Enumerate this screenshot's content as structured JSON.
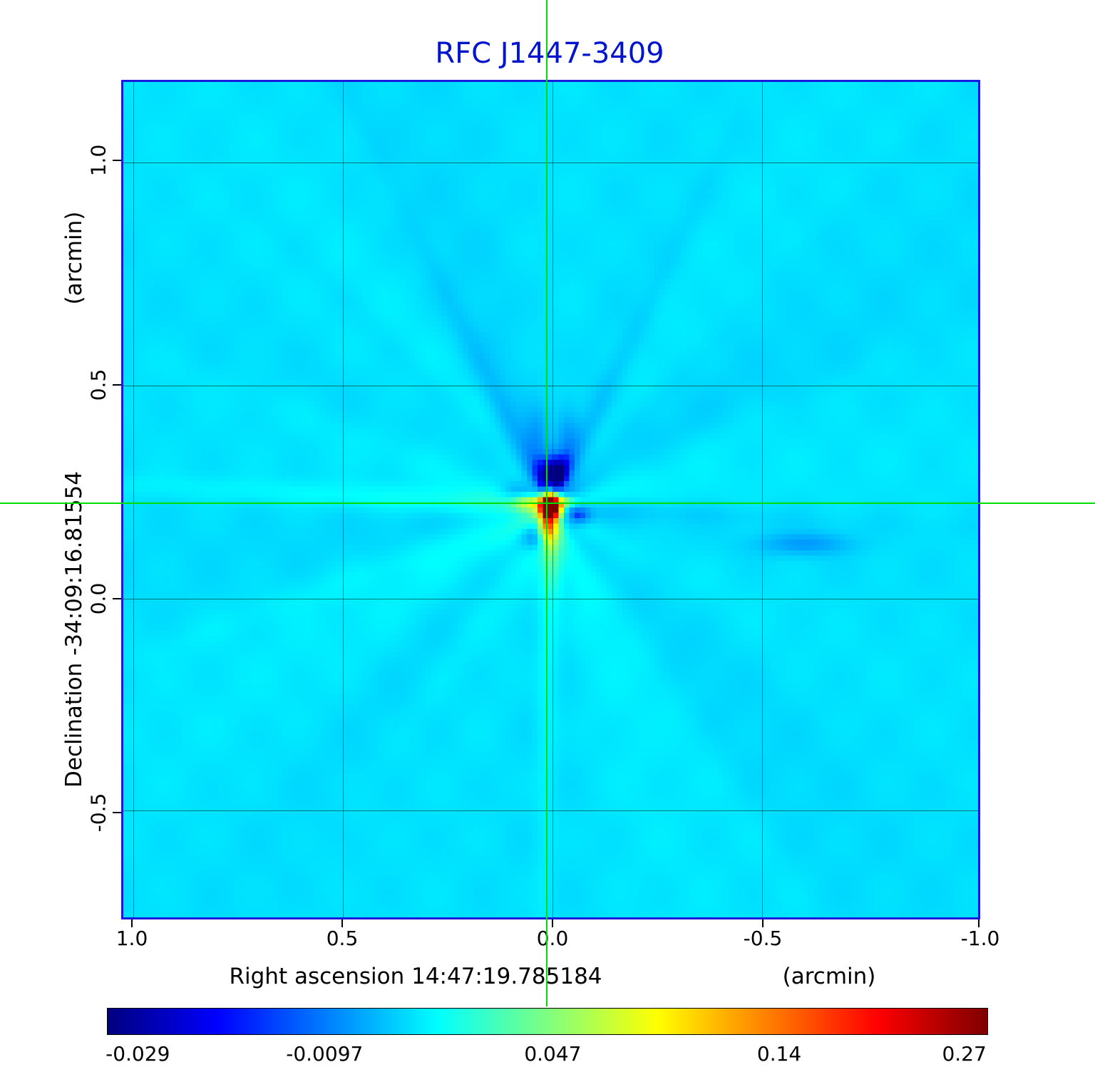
{
  "chart_data": {
    "type": "heatmap",
    "title": "RFC J1447-3409",
    "title_color": "#0014cd",
    "x_axis": {
      "label": "Right ascension  14:47:19.785184",
      "unit": "(arcmin)",
      "ticks": [
        "1.0",
        "0.5",
        "0.0",
        "-0.5",
        "-1.0"
      ]
    },
    "y_axis": {
      "label": "Declination  -34:09:16.81554",
      "unit": "(arcmin)",
      "ticks": [
        "1.0",
        "0.5",
        "0.0",
        "-0.5"
      ]
    },
    "colorbar": {
      "colormap": "jet",
      "tick_labels": [
        "-0.029",
        "-0.0097",
        "0.047",
        "0.14",
        "0.27"
      ],
      "tick_values": [
        -0.029,
        -0.0097,
        0.047,
        0.14,
        0.27
      ],
      "tick_positions": [
        0.035,
        0.247,
        0.506,
        0.763,
        0.973
      ]
    },
    "value_range": [
      -0.029,
      0.27
    ],
    "peak_value": 0.27,
    "background_value_estimate": 0.012,
    "crosshair_color": "#00dd00",
    "grid": true,
    "legend_position": "none"
  }
}
